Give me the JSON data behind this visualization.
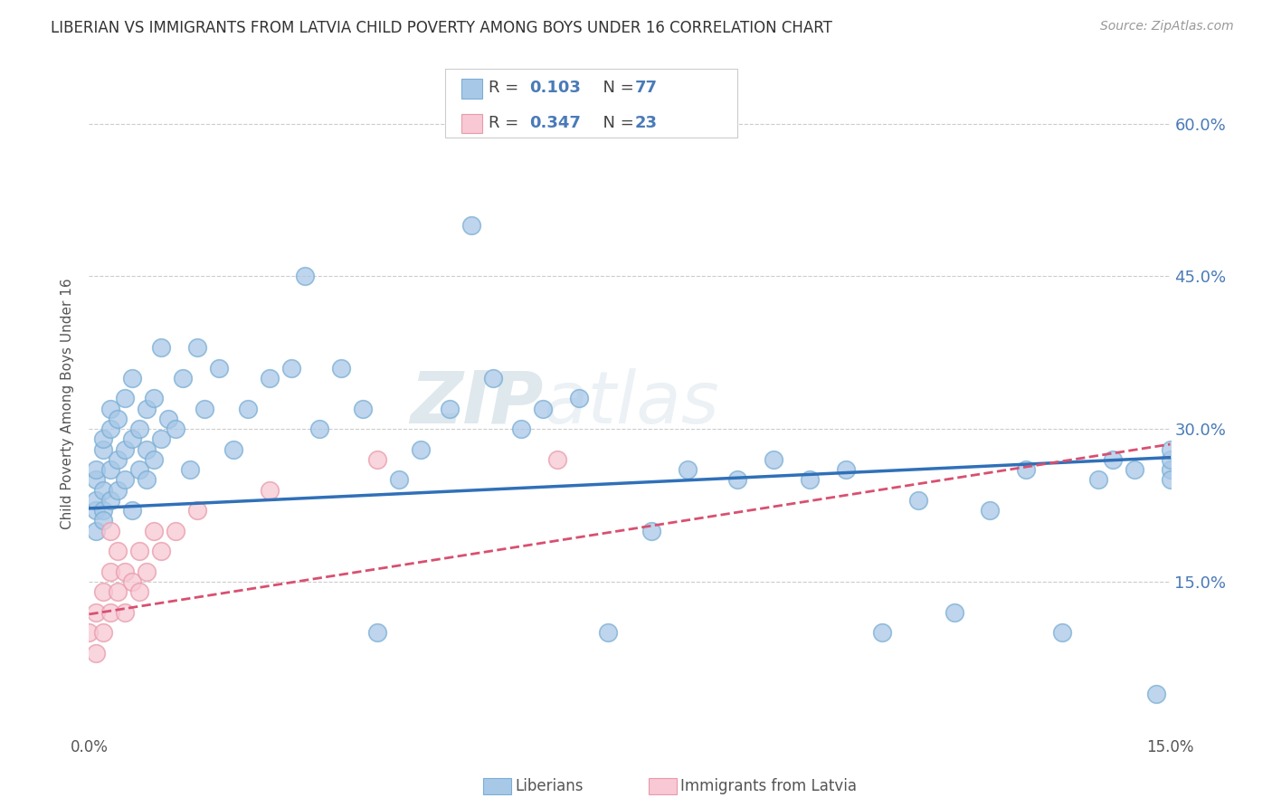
{
  "title": "LIBERIAN VS IMMIGRANTS FROM LATVIA CHILD POVERTY AMONG BOYS UNDER 16 CORRELATION CHART",
  "source_text": "Source: ZipAtlas.com",
  "ylabel": "Child Poverty Among Boys Under 16",
  "xlim": [
    0.0,
    0.15
  ],
  "ylim": [
    0.0,
    0.65
  ],
  "xtick_vals": [
    0.0,
    0.15
  ],
  "xtick_labels": [
    "0.0%",
    "15.0%"
  ],
  "ytick_vals": [
    0.15,
    0.3,
    0.45,
    0.6
  ],
  "ytick_labels": [
    "15.0%",
    "30.0%",
    "45.0%",
    "60.0%"
  ],
  "legend_labels": [
    "Liberians",
    "Immigrants from Latvia"
  ],
  "blue_color": "#a8c8e8",
  "blue_edge_color": "#7aaed4",
  "pink_color": "#f8c8d4",
  "pink_edge_color": "#e89aaa",
  "blue_line_color": "#3070b8",
  "pink_line_color": "#d85070",
  "watermark_color": "#c8d8e8",
  "legend_text_color": "#4a7ab8",
  "watermark": "ZIPatlas",
  "lib_trend_y0": 0.222,
  "lib_trend_y1": 0.272,
  "lat_trend_y0": 0.118,
  "lat_trend_y1": 0.285,
  "lib_scatter_x": [
    0.001,
    0.001,
    0.001,
    0.001,
    0.001,
    0.002,
    0.002,
    0.002,
    0.002,
    0.002,
    0.003,
    0.003,
    0.003,
    0.003,
    0.004,
    0.004,
    0.004,
    0.005,
    0.005,
    0.005,
    0.006,
    0.006,
    0.006,
    0.007,
    0.007,
    0.008,
    0.008,
    0.008,
    0.009,
    0.009,
    0.01,
    0.01,
    0.011,
    0.012,
    0.013,
    0.014,
    0.015,
    0.016,
    0.018,
    0.02,
    0.022,
    0.025,
    0.028,
    0.03,
    0.032,
    0.035,
    0.038,
    0.04,
    0.043,
    0.046,
    0.05,
    0.053,
    0.056,
    0.06,
    0.063,
    0.068,
    0.072,
    0.078,
    0.083,
    0.09,
    0.095,
    0.1,
    0.105,
    0.11,
    0.115,
    0.12,
    0.125,
    0.13,
    0.135,
    0.14,
    0.142,
    0.145,
    0.148,
    0.15,
    0.15,
    0.15,
    0.15
  ],
  "lib_scatter_y": [
    0.22,
    0.25,
    0.2,
    0.23,
    0.26,
    0.22,
    0.28,
    0.24,
    0.21,
    0.29,
    0.3,
    0.26,
    0.32,
    0.23,
    0.27,
    0.24,
    0.31,
    0.33,
    0.25,
    0.28,
    0.29,
    0.35,
    0.22,
    0.3,
    0.26,
    0.28,
    0.32,
    0.25,
    0.27,
    0.33,
    0.29,
    0.38,
    0.31,
    0.3,
    0.35,
    0.26,
    0.38,
    0.32,
    0.36,
    0.28,
    0.32,
    0.35,
    0.36,
    0.45,
    0.3,
    0.36,
    0.32,
    0.1,
    0.25,
    0.28,
    0.32,
    0.5,
    0.35,
    0.3,
    0.32,
    0.33,
    0.1,
    0.2,
    0.26,
    0.25,
    0.27,
    0.25,
    0.26,
    0.1,
    0.23,
    0.12,
    0.22,
    0.26,
    0.1,
    0.25,
    0.27,
    0.26,
    0.04,
    0.26,
    0.27,
    0.25,
    0.28
  ],
  "lat_scatter_x": [
    0.0,
    0.001,
    0.001,
    0.002,
    0.002,
    0.003,
    0.003,
    0.003,
    0.004,
    0.004,
    0.005,
    0.005,
    0.006,
    0.007,
    0.007,
    0.008,
    0.009,
    0.01,
    0.012,
    0.015,
    0.025,
    0.04,
    0.065
  ],
  "lat_scatter_y": [
    0.1,
    0.12,
    0.08,
    0.14,
    0.1,
    0.16,
    0.12,
    0.2,
    0.14,
    0.18,
    0.12,
    0.16,
    0.15,
    0.18,
    0.14,
    0.16,
    0.2,
    0.18,
    0.2,
    0.22,
    0.24,
    0.27,
    0.27
  ]
}
